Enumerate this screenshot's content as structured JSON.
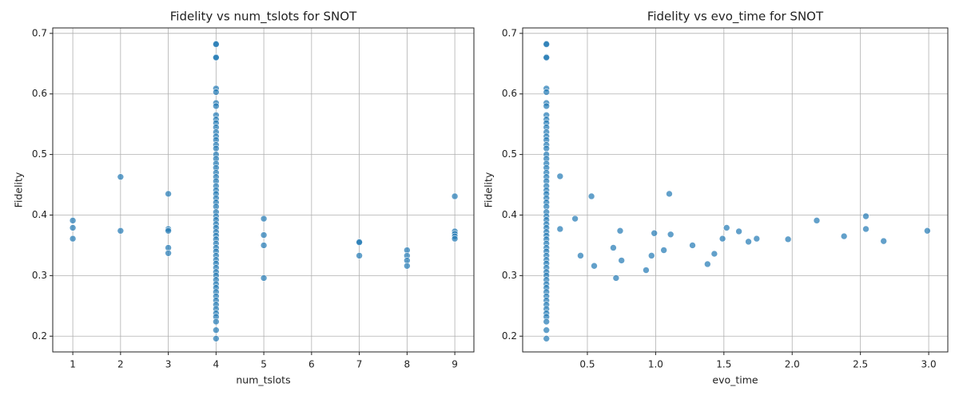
{
  "chart_data": [
    {
      "type": "scatter",
      "title": "Fidelity vs num_tslots for SNOT",
      "xlabel": "num_tslots",
      "ylabel": "Fidelity",
      "color": "#1f77b4",
      "grid": true,
      "xlim": [
        0.58,
        9.4
      ],
      "ylim": [
        0.174,
        0.709
      ],
      "xticks": [
        1,
        2,
        3,
        4,
        5,
        6,
        7,
        8,
        9
      ],
      "yticks": [
        0.2,
        0.3,
        0.4,
        0.5,
        0.6,
        0.7
      ],
      "x": [
        4,
        4,
        4,
        4,
        4,
        4,
        4,
        4,
        4,
        4,
        4,
        4,
        4,
        4,
        4,
        4,
        4,
        4,
        4,
        4,
        4,
        4,
        4,
        4,
        4,
        4,
        4,
        4,
        4,
        4,
        4,
        4,
        4,
        4,
        4,
        4,
        4,
        4,
        4,
        4,
        4,
        4,
        4,
        4,
        4,
        4,
        4,
        4,
        4,
        4,
        4,
        4,
        4,
        4,
        4,
        4,
        4,
        4,
        4,
        4,
        1,
        1,
        1,
        2,
        2,
        3,
        3,
        3,
        3,
        3,
        5,
        5,
        5,
        5,
        7,
        7,
        7,
        8,
        8,
        8,
        8,
        9,
        9,
        9,
        9,
        9
      ],
      "values": [
        0.683,
        0.682,
        0.661,
        0.66,
        0.609,
        0.603,
        0.585,
        0.58,
        0.565,
        0.558,
        0.552,
        0.545,
        0.537,
        0.53,
        0.524,
        0.516,
        0.51,
        0.5,
        0.493,
        0.485,
        0.478,
        0.47,
        0.463,
        0.456,
        0.448,
        0.441,
        0.435,
        0.428,
        0.421,
        0.414,
        0.405,
        0.398,
        0.392,
        0.385,
        0.379,
        0.372,
        0.366,
        0.36,
        0.353,
        0.346,
        0.34,
        0.333,
        0.326,
        0.32,
        0.313,
        0.306,
        0.3,
        0.293,
        0.286,
        0.28,
        0.273,
        0.266,
        0.259,
        0.252,
        0.245,
        0.238,
        0.232,
        0.224,
        0.21,
        0.196,
        0.391,
        0.379,
        0.361,
        0.463,
        0.374,
        0.435,
        0.377,
        0.374,
        0.346,
        0.337,
        0.394,
        0.367,
        0.35,
        0.296,
        0.356,
        0.355,
        0.333,
        0.342,
        0.333,
        0.325,
        0.316,
        0.431,
        0.373,
        0.369,
        0.365,
        0.361
      ]
    },
    {
      "type": "scatter",
      "title": "Fidelity vs evo_time for SNOT",
      "xlabel": "evo_time",
      "ylabel": "Fidelity",
      "color": "#1f77b4",
      "grid": true,
      "xlim": [
        0.026,
        3.14
      ],
      "ylim": [
        0.174,
        0.709
      ],
      "xticks": [
        0.5,
        {
          "value": 1,
          "label": "1.0"
        },
        1.5,
        {
          "value": 2,
          "label": "2.0"
        },
        2.5,
        {
          "value": 3,
          "label": "3.0"
        }
      ],
      "yticks": [
        0.2,
        0.3,
        0.4,
        0.5,
        0.6,
        0.7
      ],
      "x": [
        0.2,
        0.2,
        0.2,
        0.2,
        0.2,
        0.2,
        0.2,
        0.2,
        0.2,
        0.2,
        0.2,
        0.2,
        0.2,
        0.2,
        0.2,
        0.2,
        0.2,
        0.2,
        0.2,
        0.2,
        0.2,
        0.2,
        0.2,
        0.2,
        0.2,
        0.2,
        0.2,
        0.2,
        0.2,
        0.2,
        0.2,
        0.2,
        0.2,
        0.2,
        0.2,
        0.2,
        0.2,
        0.2,
        0.2,
        0.2,
        0.2,
        0.2,
        0.2,
        0.2,
        0.2,
        0.2,
        0.2,
        0.2,
        0.2,
        0.2,
        0.2,
        0.2,
        0.2,
        0.2,
        0.2,
        0.2,
        0.2,
        0.2,
        0.2,
        0.2,
        0.3,
        0.3,
        0.41,
        0.45,
        0.53,
        0.55,
        0.69,
        0.71,
        0.74,
        0.75,
        0.93,
        0.97,
        0.99,
        1.06,
        1.1,
        1.11,
        1.27,
        1.38,
        1.43,
        1.49,
        1.52,
        1.61,
        1.68,
        1.74,
        1.97,
        2.18,
        2.38,
        2.54,
        2.54,
        2.67,
        2.99
      ],
      "values": [
        0.683,
        0.682,
        0.661,
        0.66,
        0.609,
        0.603,
        0.585,
        0.58,
        0.565,
        0.558,
        0.552,
        0.545,
        0.537,
        0.53,
        0.524,
        0.516,
        0.51,
        0.5,
        0.493,
        0.485,
        0.478,
        0.47,
        0.463,
        0.456,
        0.448,
        0.441,
        0.435,
        0.428,
        0.421,
        0.414,
        0.405,
        0.398,
        0.392,
        0.385,
        0.379,
        0.372,
        0.366,
        0.36,
        0.353,
        0.346,
        0.34,
        0.333,
        0.326,
        0.32,
        0.313,
        0.306,
        0.3,
        0.293,
        0.286,
        0.28,
        0.273,
        0.266,
        0.259,
        0.252,
        0.245,
        0.238,
        0.232,
        0.224,
        0.21,
        0.196,
        0.464,
        0.377,
        0.394,
        0.333,
        0.431,
        0.316,
        0.346,
        0.296,
        0.374,
        0.325,
        0.309,
        0.333,
        0.37,
        0.342,
        0.435,
        0.368,
        0.35,
        0.319,
        0.336,
        0.361,
        0.379,
        0.373,
        0.356,
        0.361,
        0.36,
        0.391,
        0.365,
        0.398,
        0.377,
        0.357,
        0.374
      ]
    }
  ]
}
